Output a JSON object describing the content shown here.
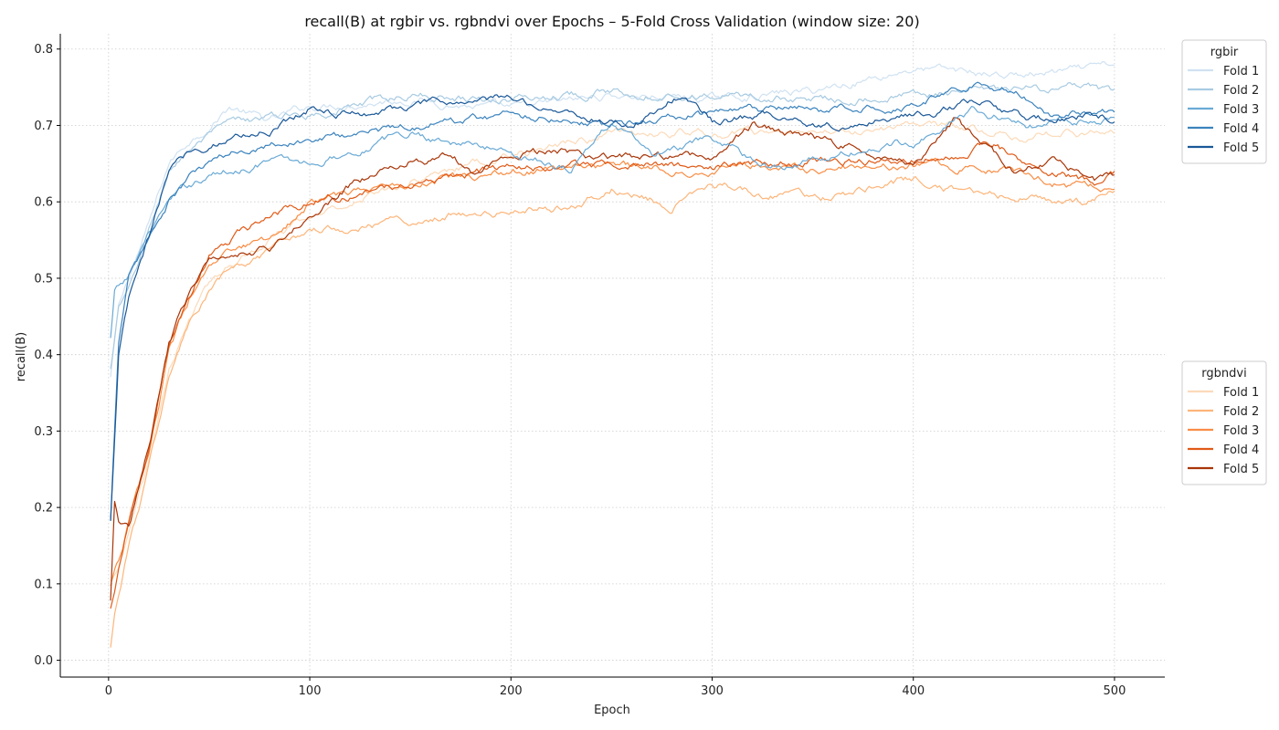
{
  "chart_data": {
    "type": "line",
    "title": "recall(B) at rgbir vs. rgbndvi over Epochs – 5-Fold Cross Validation (window size: 20)",
    "xlabel": "Epoch",
    "ylabel": "recall(B)",
    "xlim": [
      -24,
      525
    ],
    "ylim": [
      -0.022,
      0.82
    ],
    "xticks": [
      0,
      100,
      200,
      300,
      400,
      500
    ],
    "yticks": [
      0.0,
      0.1,
      0.2,
      0.3,
      0.4,
      0.5,
      0.6,
      0.7,
      0.8
    ],
    "xtick_labels": [
      "0",
      "100",
      "200",
      "300",
      "400",
      "500"
    ],
    "ytick_labels": [
      "0.0",
      "0.1",
      "0.2",
      "0.3",
      "0.4",
      "0.5",
      "0.6",
      "0.7",
      "0.8"
    ],
    "grid": true,
    "legends": [
      {
        "title": "rgbir",
        "placement": "top-right outside",
        "entries": [
          "Fold 1",
          "Fold 2",
          "Fold 3",
          "Fold 4",
          "Fold 5"
        ],
        "colors": [
          "#d0e2f2",
          "#a8cbe2",
          "#6aaad5",
          "#3b83bd",
          "#1a5898"
        ]
      },
      {
        "title": "rgbndvi",
        "placement": "center-right outside",
        "entries": [
          "Fold 1",
          "Fold 2",
          "Fold 3",
          "Fold 4",
          "Fold 5"
        ],
        "colors": [
          "#fcdab9",
          "#fdb57a",
          "#f98d45",
          "#e05a17",
          "#a83609"
        ]
      }
    ],
    "series": [
      {
        "group": "rgbir",
        "name": "Fold 1",
        "color": "#d0e2f2",
        "x": [
          1,
          5,
          10,
          20,
          30,
          40,
          50,
          60,
          80,
          100,
          150,
          200,
          250,
          300,
          350,
          400,
          450,
          480,
          500
        ],
        "values": [
          0.37,
          0.46,
          0.5,
          0.57,
          0.65,
          0.68,
          0.7,
          0.725,
          0.705,
          0.725,
          0.735,
          0.72,
          0.74,
          0.735,
          0.745,
          0.775,
          0.765,
          0.77,
          0.777
        ]
      },
      {
        "group": "rgbir",
        "name": "Fold 2",
        "color": "#a8cbe2",
        "x": [
          1,
          5,
          10,
          20,
          30,
          40,
          50,
          60,
          80,
          100,
          150,
          200,
          250,
          300,
          350,
          400,
          450,
          480,
          500
        ],
        "values": [
          0.38,
          0.46,
          0.48,
          0.56,
          0.64,
          0.67,
          0.685,
          0.7,
          0.71,
          0.715,
          0.74,
          0.735,
          0.745,
          0.74,
          0.735,
          0.74,
          0.745,
          0.75,
          0.74
        ]
      },
      {
        "group": "rgbir",
        "name": "Fold 3",
        "color": "#6aaad5",
        "x": [
          1,
          3,
          10,
          20,
          30,
          40,
          50,
          60,
          80,
          100,
          150,
          200,
          230,
          250,
          270,
          300,
          330,
          360,
          400,
          430,
          460,
          500
        ],
        "values": [
          0.42,
          0.48,
          0.5,
          0.56,
          0.6,
          0.62,
          0.635,
          0.64,
          0.655,
          0.65,
          0.69,
          0.665,
          0.645,
          0.705,
          0.66,
          0.68,
          0.645,
          0.66,
          0.68,
          0.72,
          0.7,
          0.71
        ]
      },
      {
        "group": "rgbir",
        "name": "Fold 4",
        "color": "#3b83bd",
        "x": [
          1,
          5,
          10,
          20,
          30,
          40,
          50,
          60,
          80,
          100,
          150,
          200,
          230,
          250,
          280,
          300,
          330,
          360,
          400,
          430,
          450,
          470,
          500
        ],
        "values": [
          0.18,
          0.42,
          0.5,
          0.55,
          0.6,
          0.63,
          0.65,
          0.66,
          0.68,
          0.68,
          0.7,
          0.715,
          0.71,
          0.7,
          0.71,
          0.715,
          0.72,
          0.72,
          0.73,
          0.755,
          0.745,
          0.715,
          0.722
        ]
      },
      {
        "group": "rgbir",
        "name": "Fold 5",
        "color": "#1a5898",
        "x": [
          1,
          5,
          10,
          20,
          30,
          40,
          50,
          60,
          80,
          100,
          120,
          150,
          200,
          240,
          260,
          285,
          300,
          330,
          360,
          400,
          430,
          460,
          490,
          500
        ],
        "values": [
          0.18,
          0.4,
          0.47,
          0.55,
          0.64,
          0.665,
          0.675,
          0.685,
          0.695,
          0.725,
          0.715,
          0.725,
          0.735,
          0.71,
          0.7,
          0.742,
          0.705,
          0.715,
          0.7,
          0.715,
          0.73,
          0.705,
          0.715,
          0.71
        ]
      },
      {
        "group": "rgbndvi",
        "name": "Fold 1",
        "color": "#fcdab9",
        "x": [
          1,
          5,
          10,
          20,
          30,
          40,
          50,
          60,
          80,
          100,
          150,
          200,
          250,
          300,
          350,
          400,
          450,
          500
        ],
        "values": [
          0.1,
          0.12,
          0.16,
          0.26,
          0.38,
          0.45,
          0.49,
          0.52,
          0.55,
          0.58,
          0.63,
          0.66,
          0.69,
          0.69,
          0.69,
          0.7,
          0.69,
          0.69
        ]
      },
      {
        "group": "rgbndvi",
        "name": "Fold 2",
        "color": "#fdb57a",
        "x": [
          1,
          3,
          10,
          20,
          30,
          40,
          50,
          60,
          80,
          100,
          130,
          150,
          170,
          200,
          230,
          250,
          280,
          300,
          330,
          360,
          400,
          420,
          460,
          480,
          500
        ],
        "values": [
          0.02,
          0.06,
          0.15,
          0.25,
          0.37,
          0.44,
          0.48,
          0.51,
          0.53,
          0.565,
          0.57,
          0.575,
          0.585,
          0.585,
          0.595,
          0.62,
          0.595,
          0.625,
          0.61,
          0.605,
          0.63,
          0.615,
          0.605,
          0.595,
          0.61
        ]
      },
      {
        "group": "rgbndvi",
        "name": "Fold 3",
        "color": "#f98d45",
        "x": [
          1,
          5,
          10,
          20,
          30,
          40,
          50,
          60,
          80,
          100,
          150,
          200,
          250,
          300,
          350,
          400,
          450,
          480,
          500
        ],
        "values": [
          0.1,
          0.13,
          0.18,
          0.27,
          0.4,
          0.47,
          0.51,
          0.53,
          0.55,
          0.6,
          0.625,
          0.64,
          0.645,
          0.645,
          0.645,
          0.65,
          0.64,
          0.62,
          0.625
        ]
      },
      {
        "group": "rgbndvi",
        "name": "Fold 4",
        "color": "#e05a17",
        "x": [
          1,
          5,
          10,
          20,
          30,
          40,
          50,
          60,
          80,
          100,
          120,
          150,
          200,
          250,
          300,
          350,
          400,
          440,
          460,
          490,
          500
        ],
        "values": [
          0.07,
          0.12,
          0.18,
          0.27,
          0.41,
          0.47,
          0.53,
          0.55,
          0.58,
          0.6,
          0.61,
          0.625,
          0.645,
          0.65,
          0.645,
          0.655,
          0.655,
          0.675,
          0.64,
          0.625,
          0.635
        ]
      },
      {
        "group": "rgbndvi",
        "name": "Fold 5",
        "color": "#a83609",
        "x": [
          1,
          3,
          5,
          10,
          20,
          30,
          40,
          50,
          60,
          80,
          100,
          120,
          150,
          170,
          180,
          200,
          230,
          250,
          300,
          320,
          350,
          400,
          420,
          450,
          470,
          490,
          500
        ],
        "values": [
          0.08,
          0.21,
          0.18,
          0.17,
          0.28,
          0.41,
          0.48,
          0.52,
          0.535,
          0.54,
          0.58,
          0.62,
          0.655,
          0.66,
          0.64,
          0.665,
          0.665,
          0.655,
          0.66,
          0.7,
          0.685,
          0.65,
          0.705,
          0.64,
          0.655,
          0.63,
          0.636
        ]
      }
    ]
  }
}
